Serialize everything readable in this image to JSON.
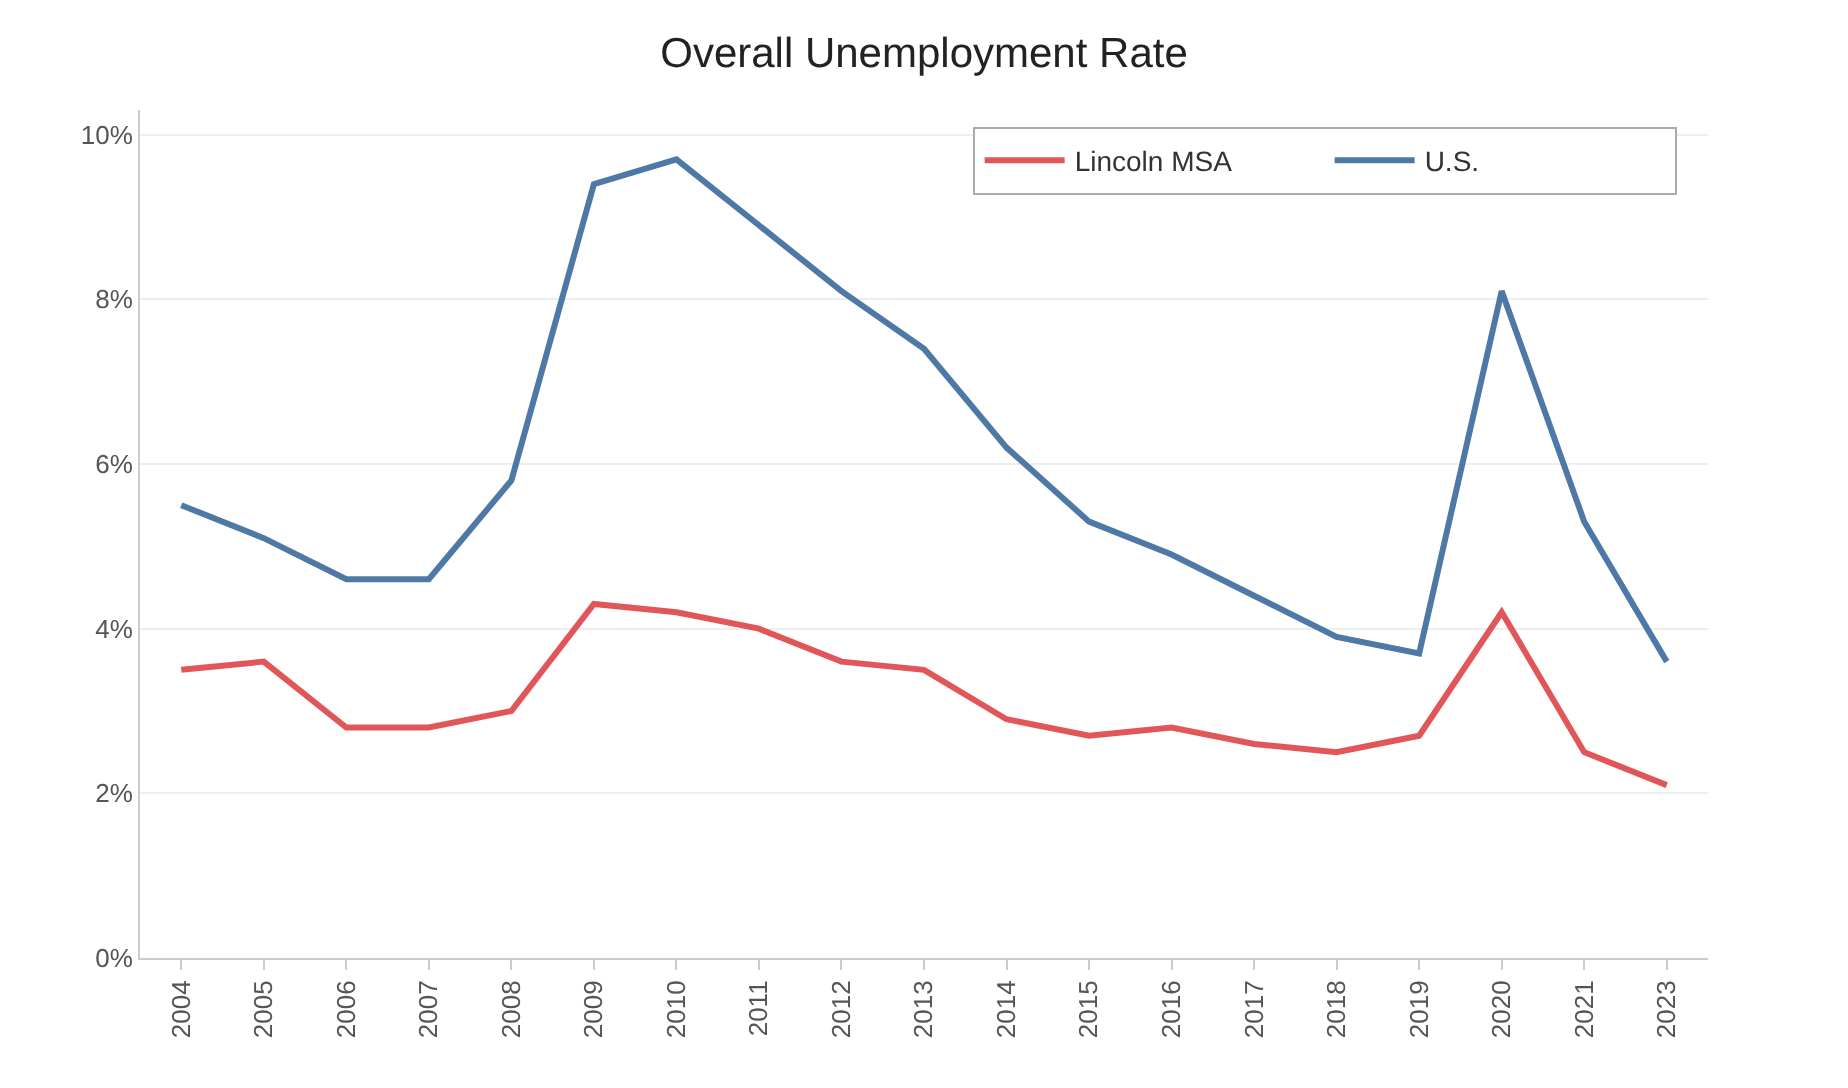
{
  "chart_data": {
    "type": "line",
    "title": "Overall Unemployment Rate",
    "categories": [
      "2004",
      "2005",
      "2006",
      "2007",
      "2008",
      "2009",
      "2010",
      "2011",
      "2012",
      "2013",
      "2014",
      "2015",
      "2016",
      "2017",
      "2018",
      "2019",
      "2020",
      "2021",
      "2023"
    ],
    "series": [
      {
        "name": "Lincoln MSA",
        "color": "#e15759",
        "values": [
          3.5,
          3.6,
          2.8,
          2.8,
          3.0,
          4.3,
          4.2,
          4.0,
          3.6,
          3.5,
          2.9,
          2.7,
          2.8,
          2.6,
          2.5,
          2.7,
          4.2,
          2.5,
          2.1
        ]
      },
      {
        "name": "U.S.",
        "color": "#4e79a7",
        "values": [
          5.5,
          5.1,
          4.6,
          4.6,
          5.8,
          9.4,
          9.7,
          8.9,
          8.1,
          7.4,
          6.2,
          5.3,
          4.9,
          4.4,
          3.9,
          3.7,
          8.1,
          5.3,
          3.6
        ]
      }
    ],
    "ylim": [
      0,
      10.3
    ],
    "yticks": [
      {
        "value": 0,
        "label": "0%"
      },
      {
        "value": 2,
        "label": "2%"
      },
      {
        "value": 4,
        "label": "4%"
      },
      {
        "value": 6,
        "label": "6%"
      },
      {
        "value": 8,
        "label": "8%"
      },
      {
        "value": 10,
        "label": "10%"
      }
    ],
    "grid": "y",
    "legend": "top right",
    "marker": "none",
    "line_style": "solid"
  }
}
